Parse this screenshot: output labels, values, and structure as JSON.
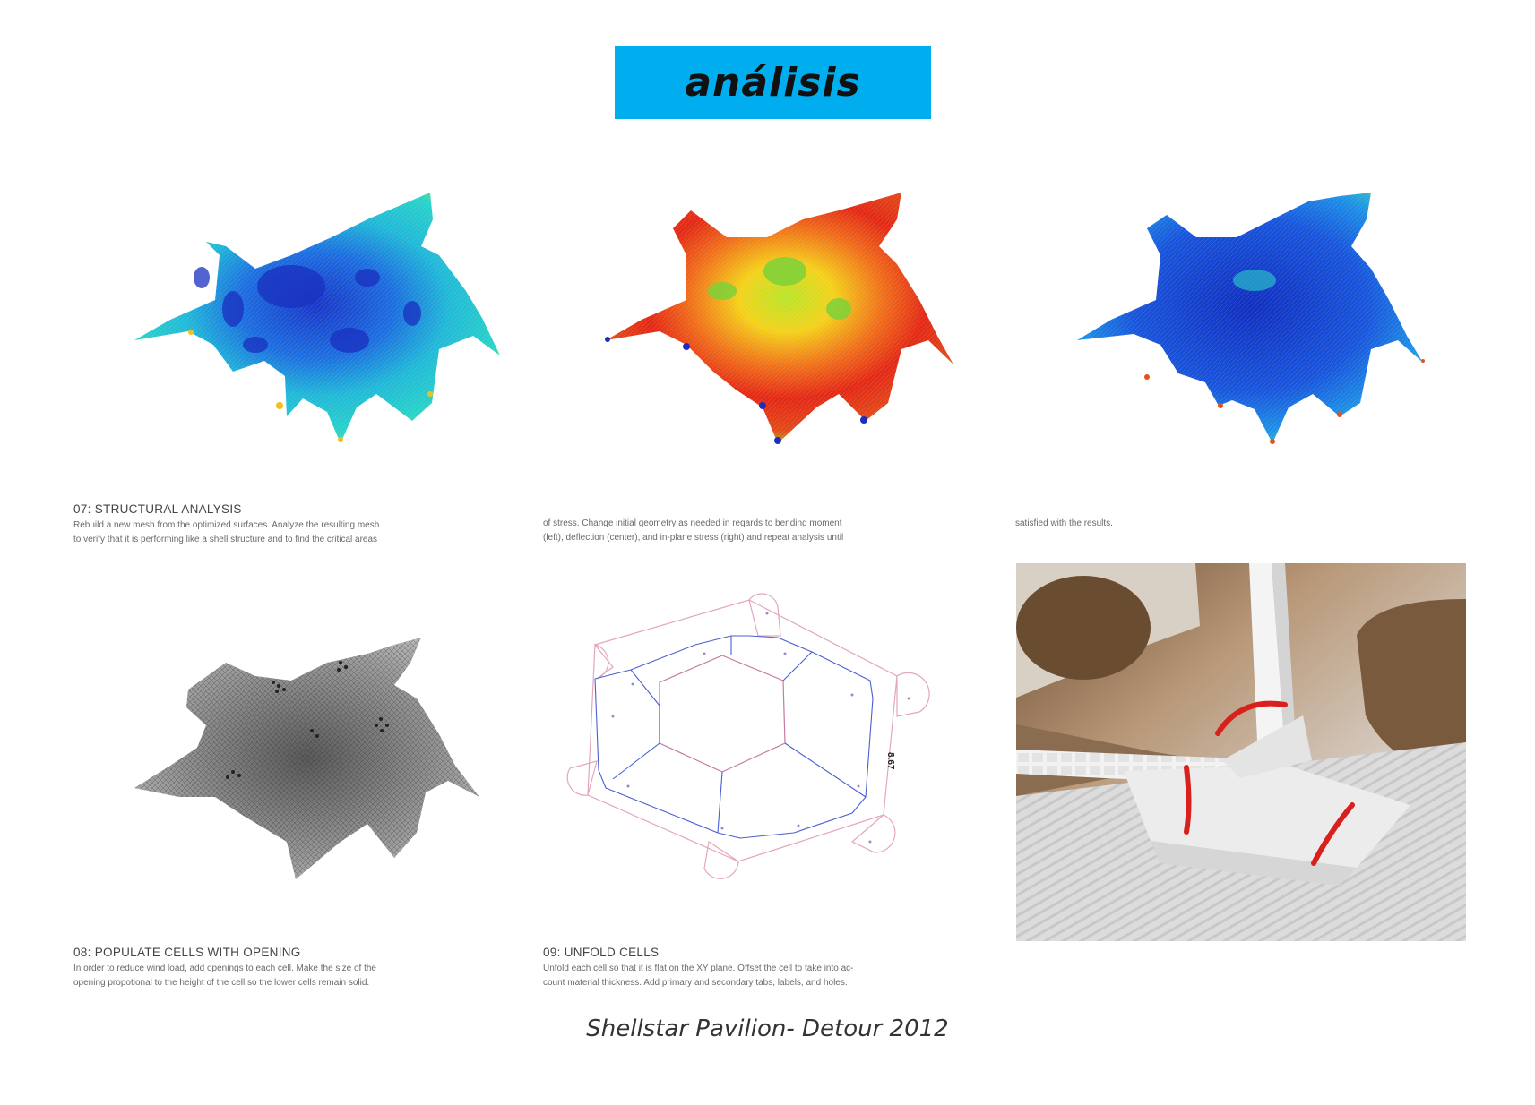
{
  "header": {
    "title": "análisis"
  },
  "panels": {
    "moment": {
      "caption_title": "07: STRUCTURAL ANALYSIS",
      "caption_lines": [
        "Rebuild a new mesh from the optimized surfaces. Analyze the resulting mesh",
        "to verify that it is performing like a shell structure and to find the critical areas"
      ]
    },
    "deflection": {
      "caption_lines": [
        "of stress. Change initial geometry as needed in regards to bending moment",
        "(left), deflection (center), and in-plane stress (right) and repeat analysis until"
      ]
    },
    "stress": {
      "caption_lines": [
        "satisfied with the results."
      ]
    },
    "openings": {
      "caption_title": "08: POPULATE CELLS WITH OPENING",
      "caption_lines": [
        "In order to reduce wind load, add openings to each cell. Make the size of the",
        "opening propotional to the height of the cell so the lower cells remain solid."
      ]
    },
    "unfold": {
      "caption_title": "09: UNFOLD CELLS",
      "caption_lines": [
        "Unfold each cell so that it is flat on the XY plane. Offset the cell to take into ac-",
        "count material thickness. Add primary and secondary tabs, labels, and holes."
      ],
      "drawing_label": "8.67"
    },
    "photo": {}
  },
  "footer": {
    "text": "Shellstar Pavilion- Detour 2012"
  },
  "colors": {
    "title_bg": "#00aeef",
    "heat_red": "#e8321a",
    "heat_blue": "#1a3fd0",
    "mesh_gray": "#8a8a8a",
    "unfold_pink": "#e3a6bd",
    "unfold_blue": "#4a5fd0",
    "clip_red": "#d8201c"
  }
}
